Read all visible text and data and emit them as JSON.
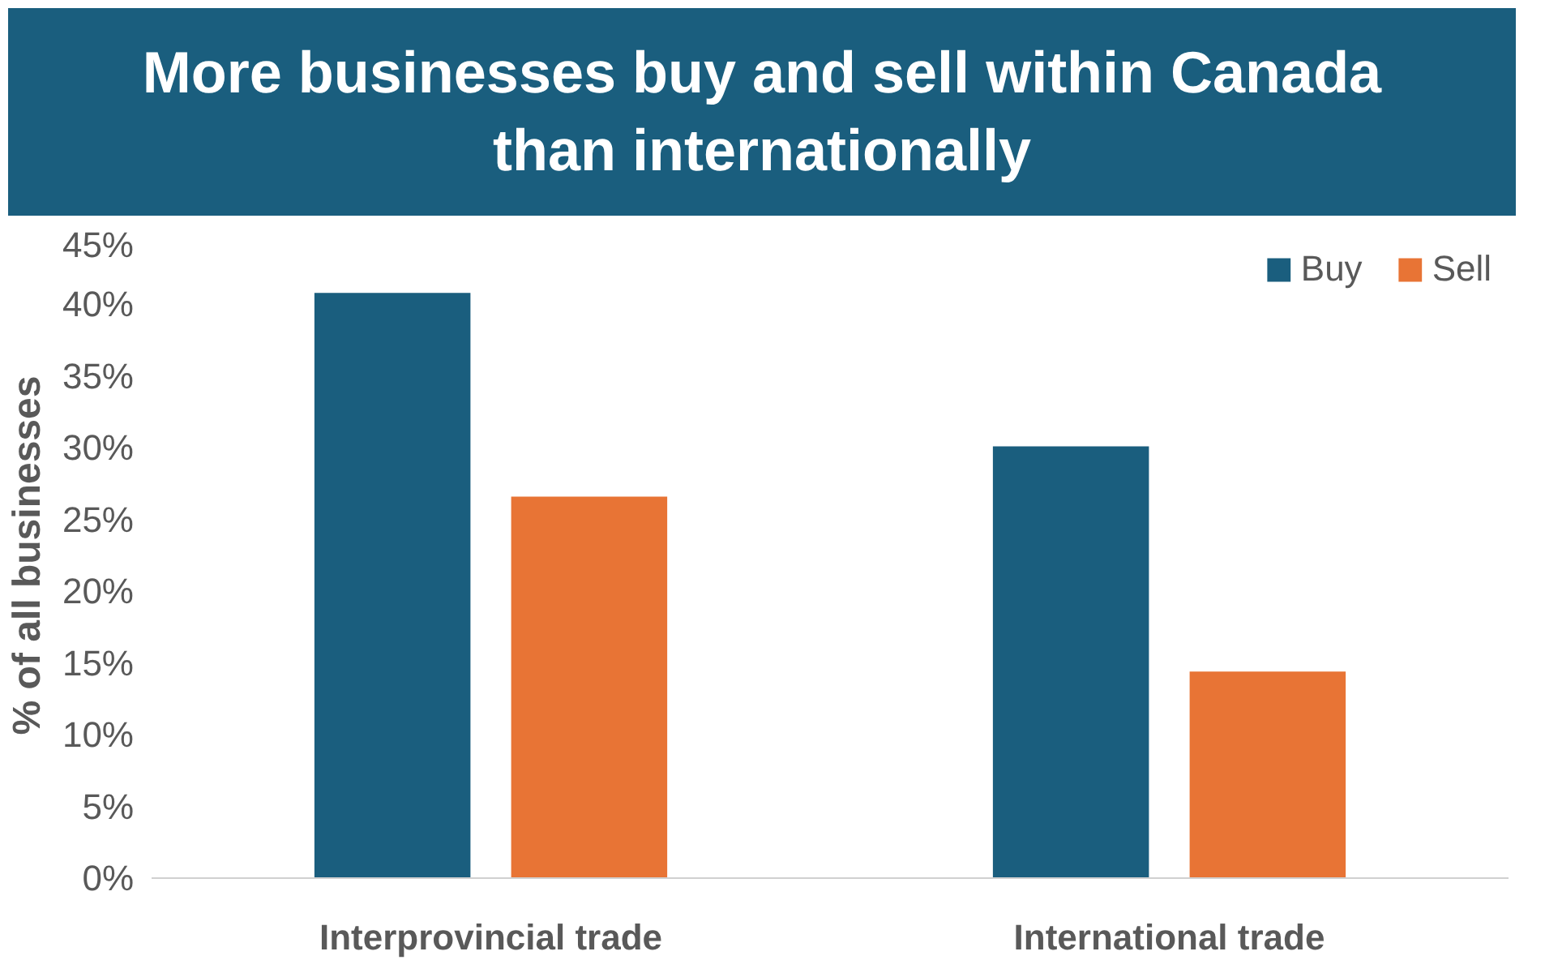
{
  "chart_data": {
    "type": "bar",
    "title": "More businesses buy and sell within Canada than internationally",
    "ylabel": "% of all businesses",
    "categories": [
      "Interprovincial trade",
      "International trade"
    ],
    "series": [
      {
        "name": "Buy",
        "color": "#1a5e7e",
        "values": [
          40.8,
          30.1
        ]
      },
      {
        "name": "Sell",
        "color": "#e87435",
        "values": [
          26.6,
          14.4
        ]
      }
    ],
    "ylim": [
      0,
      45
    ],
    "yticks": [
      {
        "value": 0,
        "label": "0%"
      },
      {
        "value": 5,
        "label": "5%"
      },
      {
        "value": 10,
        "label": "10%"
      },
      {
        "value": 15,
        "label": "15%"
      },
      {
        "value": 20,
        "label": "20%"
      },
      {
        "value": 25,
        "label": "25%"
      },
      {
        "value": 30,
        "label": "30%"
      },
      {
        "value": 35,
        "label": "35%"
      },
      {
        "value": 40,
        "label": "40%"
      },
      {
        "value": 45,
        "label": "45%"
      }
    ],
    "grid": false,
    "legend": "top right"
  }
}
